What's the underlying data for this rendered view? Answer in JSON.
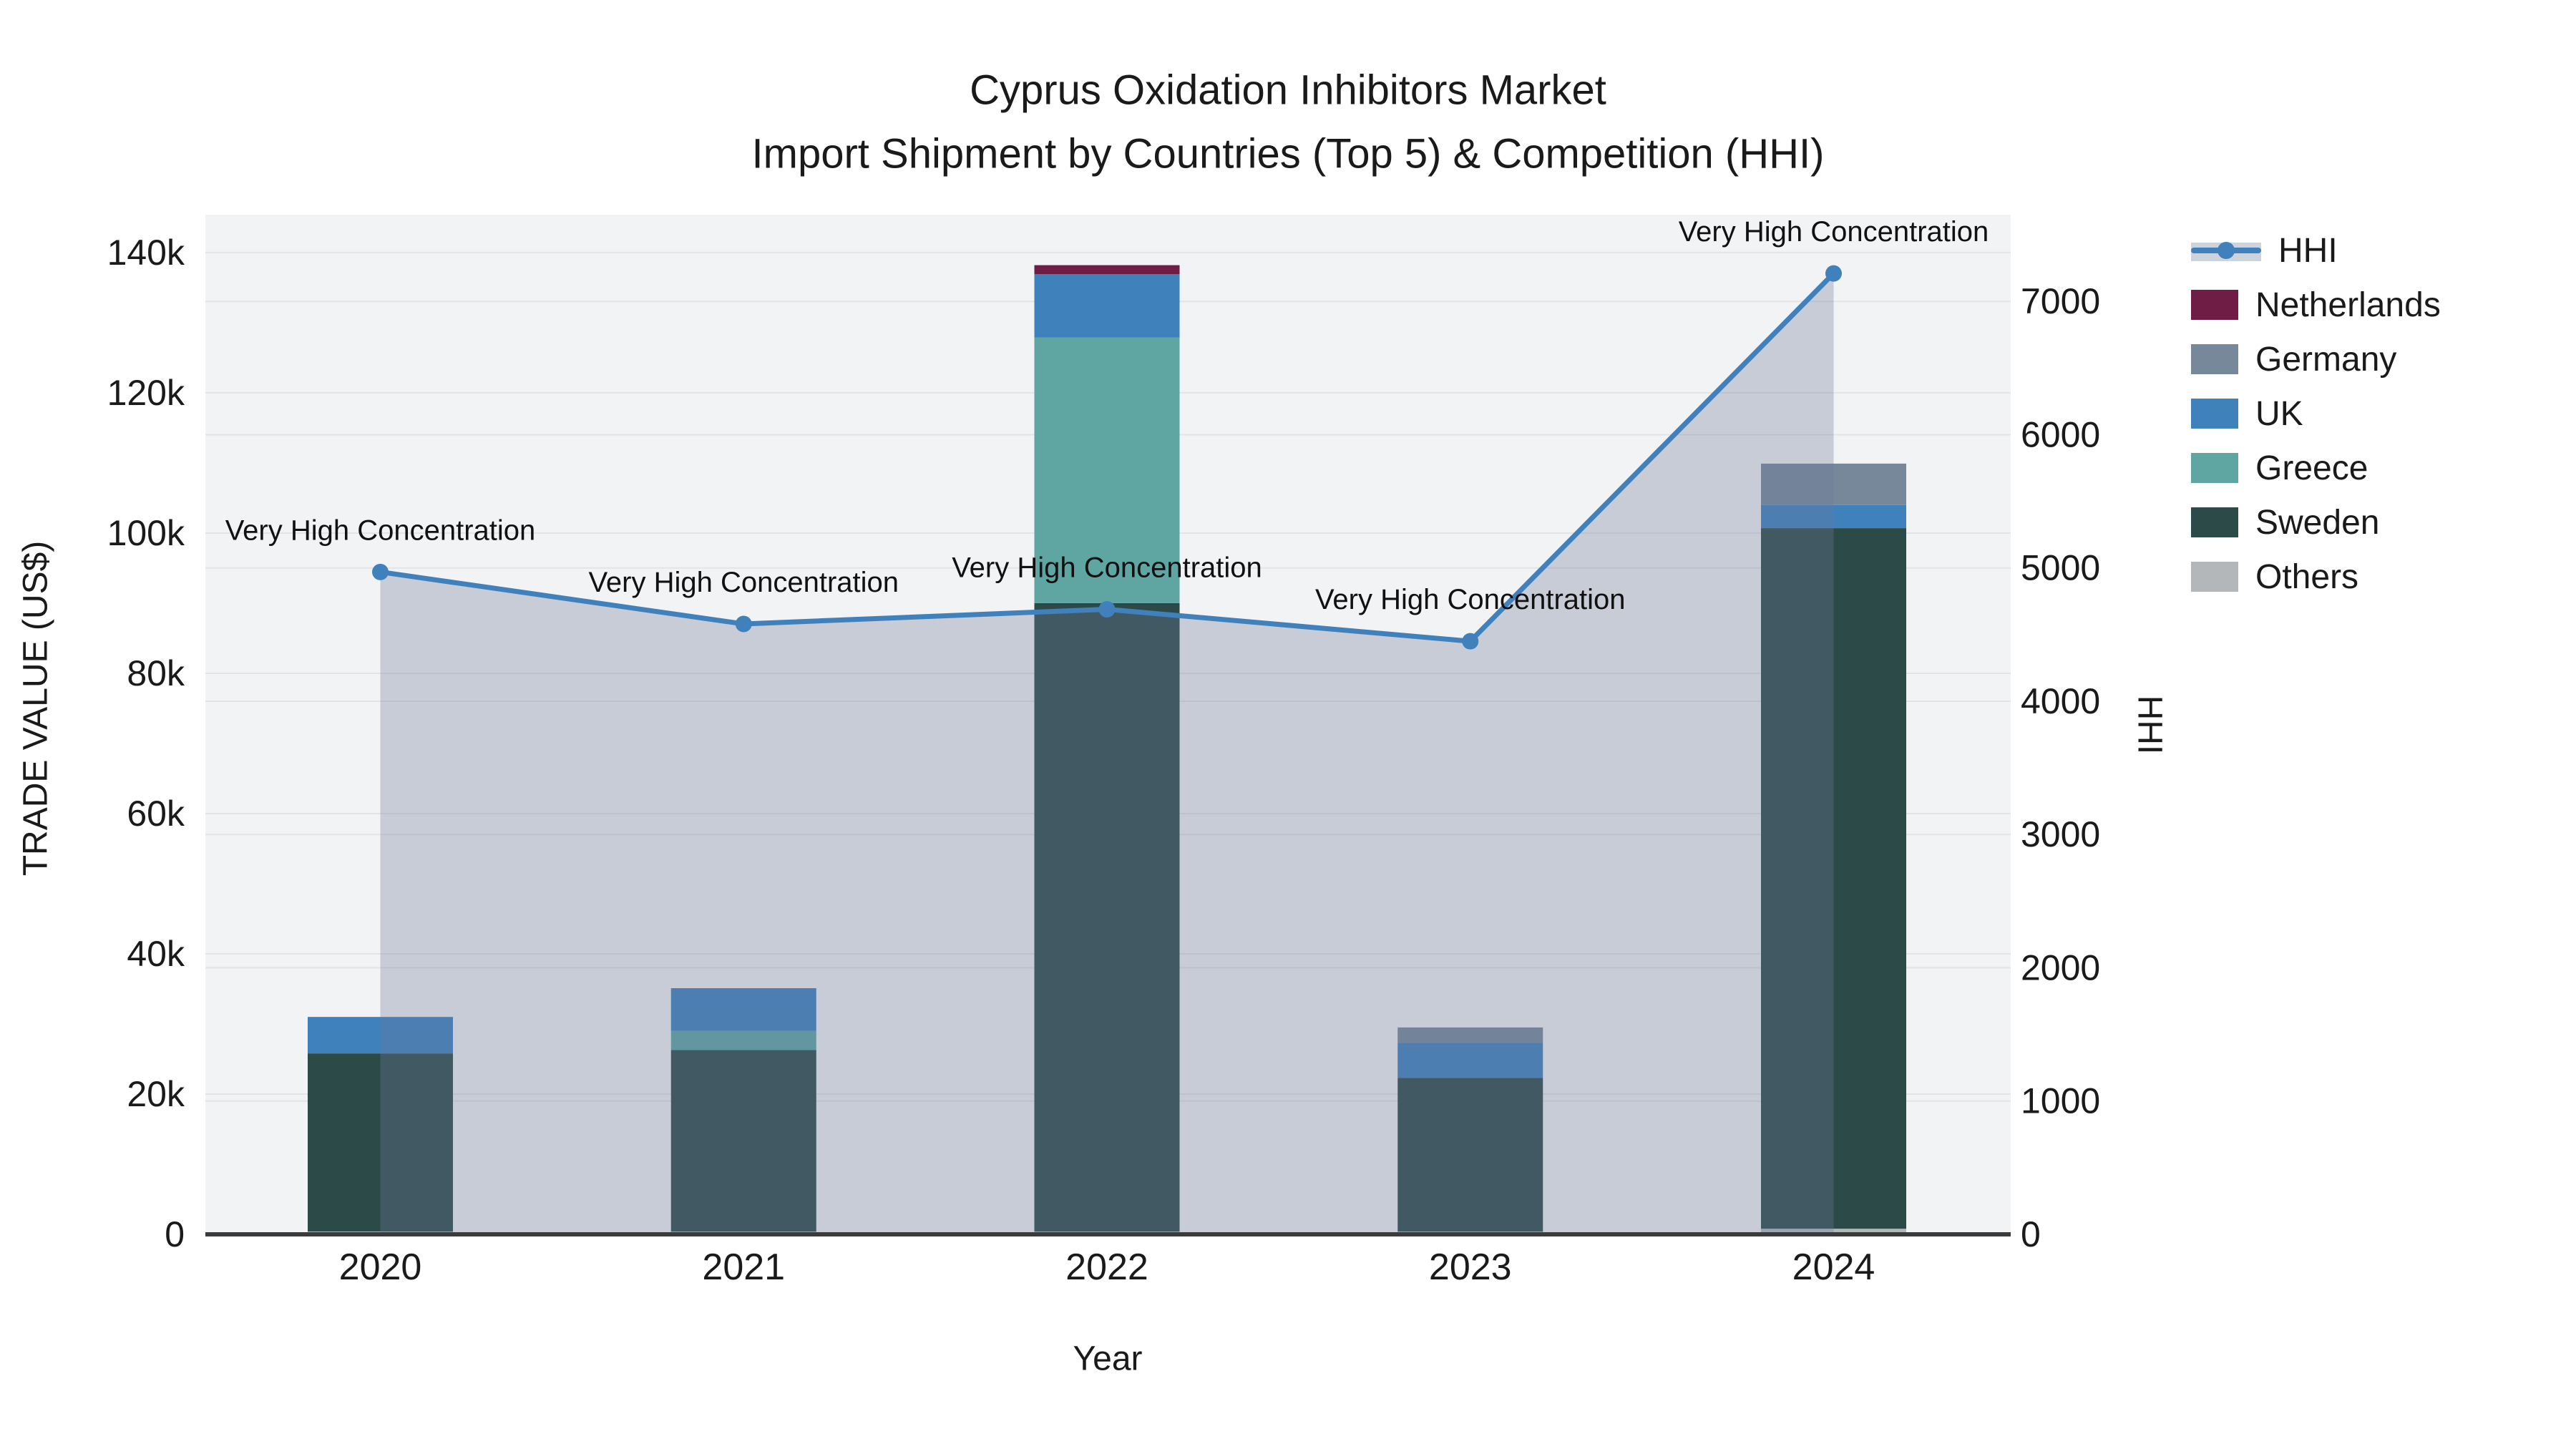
{
  "title": {
    "line1": "Cyprus Oxidation Inhibitors Market",
    "line2": "Import Shipment by Countries (Top 5) & Competition (HHI)"
  },
  "axes": {
    "x_title": "Year",
    "y_left_title": "TRADE VALUE (US$)",
    "y_right_title": "HHI"
  },
  "legend": {
    "items": [
      {
        "label": "HHI",
        "type": "line",
        "color": "#4181bb",
        "band_color": "#cdd3dd"
      },
      {
        "label": "Netherlands",
        "type": "box",
        "color": "#701d45"
      },
      {
        "label": "Germany",
        "type": "box",
        "color": "#77889a"
      },
      {
        "label": "UK",
        "type": "box",
        "color": "#3f81bb"
      },
      {
        "label": "Greece",
        "type": "box",
        "color": "#5fa5a1"
      },
      {
        "label": "Sweden",
        "type": "box",
        "color": "#2b4a48"
      },
      {
        "label": "Others",
        "type": "box",
        "color": "#b3b7b9"
      }
    ]
  },
  "chart_data": {
    "type": "bar+line",
    "title": "Cyprus Oxidation Inhibitors Market — Import Shipment by Countries (Top 5) & Competition (HHI)",
    "xlabel": "Year",
    "ylabel_left": "TRADE VALUE (US$)",
    "ylabel_right": "HHI",
    "categories": [
      "2020",
      "2021",
      "2022",
      "2023",
      "2024"
    ],
    "bar_stack_order_bottom_to_top": [
      "Others",
      "Sweden",
      "Greece",
      "UK",
      "Germany",
      "Netherlands"
    ],
    "series": [
      {
        "name": "Others",
        "color": "#b3b7b9",
        "values": [
          400,
          400,
          400,
          400,
          800
        ]
      },
      {
        "name": "Sweden",
        "color": "#2b4a48",
        "values": [
          25400,
          25900,
          89600,
          21900,
          99900
        ]
      },
      {
        "name": "Greece",
        "color": "#5fa5a1",
        "values": [
          0,
          2700,
          37900,
          0,
          0
        ]
      },
      {
        "name": "UK",
        "color": "#3f81bb",
        "values": [
          5200,
          6100,
          9000,
          5000,
          3300
        ]
      },
      {
        "name": "Germany",
        "color": "#77889a",
        "values": [
          0,
          0,
          0,
          2200,
          5900
        ]
      },
      {
        "name": "Netherlands",
        "color": "#701d45",
        "values": [
          0,
          0,
          1300,
          0,
          0
        ]
      }
    ],
    "bar_totals": [
      31000,
      35100,
      138200,
      29500,
      109900
    ],
    "line_series": {
      "name": "HHI",
      "color": "#4181bb",
      "area_fill": "rgba(108,122,155,0.32)",
      "values": [
        4970,
        4580,
        4690,
        4450,
        7210
      ],
      "annotations": [
        "Very High Concentration",
        "Very High Concentration",
        "Very High Concentration",
        "Very High Concentration",
        "Very High Concentration"
      ]
    },
    "y_left_ticks": {
      "labels": [
        "0",
        "20k",
        "40k",
        "60k",
        "80k",
        "100k",
        "120k",
        "140k"
      ],
      "values": [
        0,
        20000,
        40000,
        60000,
        80000,
        100000,
        120000,
        140000
      ]
    },
    "y_right_ticks": {
      "labels": [
        "0",
        "1000",
        "2000",
        "3000",
        "4000",
        "5000",
        "6000",
        "7000"
      ],
      "values": [
        0,
        1000,
        2000,
        3000,
        4000,
        5000,
        6000,
        7000
      ]
    },
    "y_left_range": [
      0,
      145400
    ],
    "y_right_range": [
      0,
      7651
    ],
    "grid": true,
    "legend_position": "right",
    "plot_bg": "#f2f3f4",
    "grid_color": "#e2e4e6",
    "axis_line_color": "#3b3b3b",
    "annotation_font_color": "#111111"
  }
}
